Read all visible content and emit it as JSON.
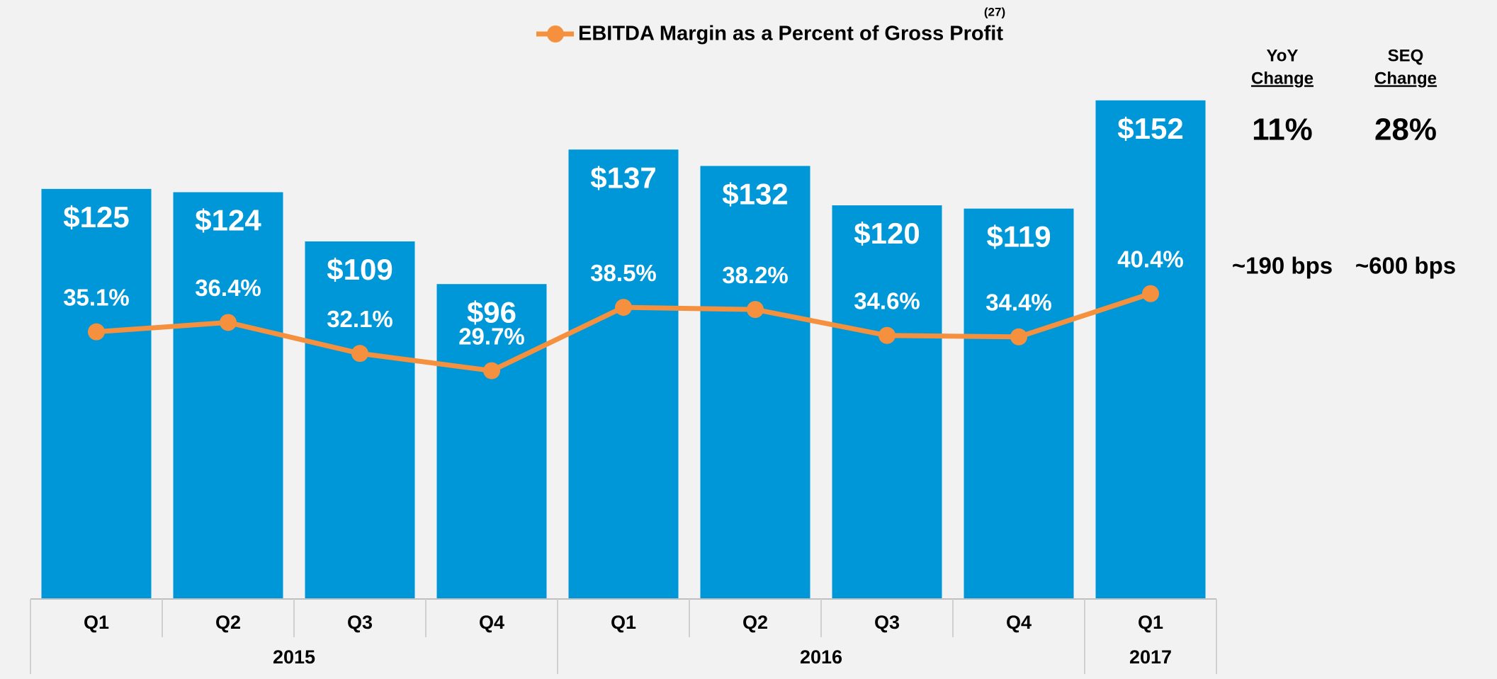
{
  "chart_data": {
    "type": "bar",
    "legend_label": "EBITDA Margin as a Percent of Gross Profit",
    "legend_note": "(27)",
    "categories": [
      "Q1",
      "Q2",
      "Q3",
      "Q4",
      "Q1",
      "Q2",
      "Q3",
      "Q4",
      "Q1"
    ],
    "x_groups": [
      {
        "name": "2015",
        "count": 4
      },
      {
        "name": "2016",
        "count": 4
      },
      {
        "name": "2017",
        "count": 1
      }
    ],
    "series": [
      {
        "type": "bar",
        "color": "#0097d8",
        "values": [
          125,
          124,
          109,
          96,
          137,
          132,
          120,
          119,
          152
        ],
        "value_labels": [
          "$125",
          "$124",
          "$109",
          "$96",
          "$137",
          "$132",
          "$120",
          "$119",
          "$152"
        ]
      },
      {
        "type": "line",
        "axis": "y2",
        "color": "#f5913e",
        "values": [
          35.1,
          36.4,
          32.1,
          29.7,
          38.5,
          38.2,
          34.6,
          34.4,
          40.4
        ],
        "value_labels": [
          "35.1%",
          "36.4%",
          "32.1%",
          "29.7%",
          "38.5%",
          "38.2%",
          "34.6%",
          "34.4%",
          "40.4%"
        ]
      }
    ],
    "ylim": [
      0,
      180
    ],
    "y2lim": [
      -2,
      80
    ],
    "side_table": [
      {
        "label": "YoY",
        "sublabel": "Change",
        "bar_change": "11%",
        "margin_change": "~190 bps"
      },
      {
        "label": "SEQ",
        "sublabel": "Change",
        "bar_change": "28%",
        "margin_change": "~600 bps"
      }
    ]
  }
}
